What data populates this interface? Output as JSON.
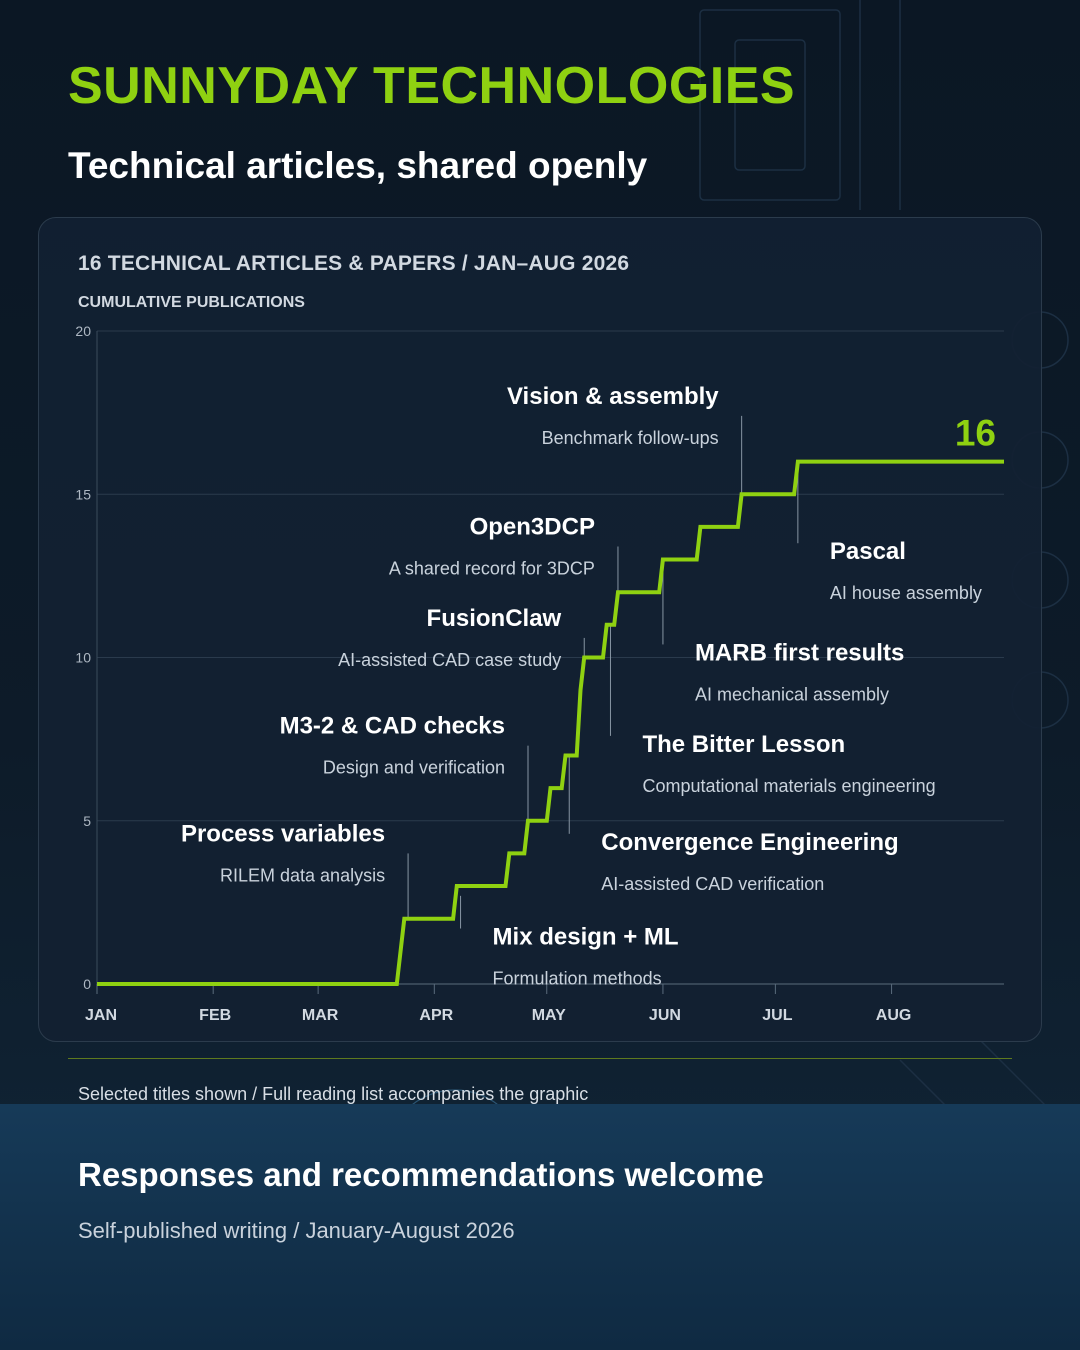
{
  "brand": "SUNNYDAY TECHNOLOGIES",
  "tagline": "Technical articles, shared openly",
  "chart_heading": "16 TECHNICAL ARTICLES & PAPERS  /  JAN–AUG 2026",
  "chart_data": {
    "type": "line",
    "line_shape": "step",
    "title": "16 TECHNICAL ARTICLES & PAPERS  /  JAN–AUG 2026",
    "ylabel": "CUMULATIVE PUBLICATIONS",
    "xlabel": "",
    "x_ticks": [
      "JAN",
      "FEB",
      "MAR",
      "APR",
      "MAY",
      "JUN",
      "JUL",
      "AUG"
    ],
    "y_ticks": [
      0,
      5,
      10,
      15,
      20
    ],
    "ylim": [
      0,
      20
    ],
    "xlim": [
      "2026-01-01",
      "2026-08-31"
    ],
    "grid": "horizontal",
    "line_color": "#8fd111",
    "final_value": 16,
    "points": [
      {
        "date": "2026-01-01",
        "value": 0
      },
      {
        "date": "2026-03-22",
        "value": 0
      },
      {
        "date": "2026-03-24",
        "value": 2
      },
      {
        "date": "2026-04-06",
        "value": 2
      },
      {
        "date": "2026-04-07",
        "value": 3
      },
      {
        "date": "2026-04-20",
        "value": 3
      },
      {
        "date": "2026-04-21",
        "value": 4
      },
      {
        "date": "2026-04-25",
        "value": 4
      },
      {
        "date": "2026-04-26",
        "value": 5
      },
      {
        "date": "2026-05-01",
        "value": 5
      },
      {
        "date": "2026-05-02",
        "value": 6
      },
      {
        "date": "2026-05-05",
        "value": 6
      },
      {
        "date": "2026-05-06",
        "value": 7
      },
      {
        "date": "2026-05-09",
        "value": 7
      },
      {
        "date": "2026-05-10",
        "value": 9
      },
      {
        "date": "2026-05-11",
        "value": 10
      },
      {
        "date": "2026-05-16",
        "value": 10
      },
      {
        "date": "2026-05-17",
        "value": 11
      },
      {
        "date": "2026-05-19",
        "value": 11
      },
      {
        "date": "2026-05-20",
        "value": 12
      },
      {
        "date": "2026-05-31",
        "value": 12
      },
      {
        "date": "2026-06-01",
        "value": 13
      },
      {
        "date": "2026-06-10",
        "value": 13
      },
      {
        "date": "2026-06-11",
        "value": 14
      },
      {
        "date": "2026-06-21",
        "value": 14
      },
      {
        "date": "2026-06-22",
        "value": 15
      },
      {
        "date": "2026-07-06",
        "value": 15
      },
      {
        "date": "2026-07-07",
        "value": 16
      },
      {
        "date": "2026-08-31",
        "value": 16
      }
    ],
    "annotations": [
      {
        "date": "2026-03-25",
        "value": 2,
        "title": "Process variables",
        "subtitle": "RILEM data analysis",
        "side": "left",
        "line_to": 4
      },
      {
        "date": "2026-04-08",
        "value": 2.7,
        "title": "Mix design + ML",
        "subtitle": "Formulation methods",
        "side": "below",
        "line_to": 1.7
      },
      {
        "date": "2026-04-26",
        "value": 5,
        "title": "M3-2 & CAD checks",
        "subtitle": "Design and verification",
        "side": "left",
        "line_to": 7.3
      },
      {
        "date": "2026-05-07",
        "value": 7,
        "title": "Convergence Engineering",
        "subtitle": "AI-assisted CAD verification",
        "side": "below",
        "line_to": 4.6
      },
      {
        "date": "2026-05-11",
        "value": 10,
        "title": "FusionClaw",
        "subtitle": "AI-assisted CAD case study",
        "side": "left",
        "line_to": 10.6
      },
      {
        "date": "2026-05-18",
        "value": 11,
        "title": "The Bitter Lesson",
        "subtitle": "Computational materials engineering",
        "side": "below",
        "line_to": 7.6
      },
      {
        "date": "2026-05-20",
        "value": 12,
        "title": "Open3DCP",
        "subtitle": "A shared record for 3DCP",
        "side": "left",
        "line_to": 13.4
      },
      {
        "date": "2026-06-01",
        "value": 13,
        "title": "MARB first results",
        "subtitle": "AI mechanical assembly",
        "side": "below",
        "line_to": 10.4
      },
      {
        "date": "2026-06-22",
        "value": 15,
        "title": "Vision & assembly",
        "subtitle": "Benchmark follow-ups",
        "side": "left",
        "line_to": 17.4
      },
      {
        "date": "2026-07-07",
        "value": 16,
        "title": "Pascal",
        "subtitle": "AI house assembly",
        "side": "below",
        "line_to": 13.5
      }
    ]
  },
  "footnote": "Selected titles shown / Full reading list accompanies the graphic",
  "cta": {
    "title": "Responses and recommendations welcome",
    "subtitle": "Self-published writing / January-August 2026"
  }
}
